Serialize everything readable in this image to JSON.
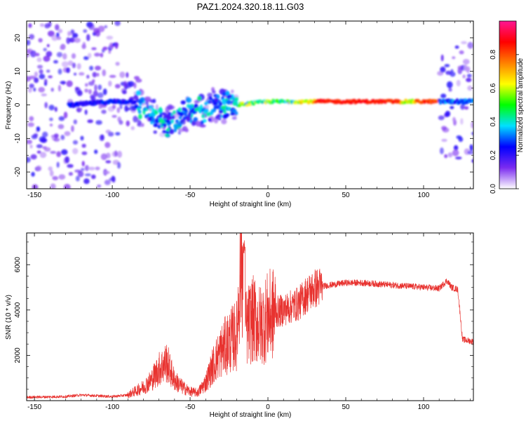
{
  "title": "PAZ1.2024.320.18.11.G03",
  "colors": {
    "snr_line": "#e8322f",
    "frame": "#000000"
  },
  "chart_data": [
    {
      "type": "heatmap",
      "xlabel": "Height of straight line (km)",
      "ylabel": "Frequency (Hz)",
      "xlim": [
        -155,
        132
      ],
      "ylim": [
        -25,
        25
      ],
      "xticks": [
        -150,
        -100,
        -50,
        0,
        50,
        100
      ],
      "yticks": [
        -20,
        -10,
        0,
        10,
        20
      ],
      "colorbar": {
        "label": "Normalized spectral amplitude",
        "range": [
          0,
          1
        ],
        "ticks": [
          0.0,
          0.2,
          0.4,
          0.6,
          0.8
        ],
        "colormap": "rainbow",
        "colors": [
          "#ffffff",
          "#7b2cf0",
          "#0000ff",
          "#00e0ff",
          "#00ff00",
          "#ffff00",
          "#ff8000",
          "#ff0000",
          "#ff1493"
        ]
      },
      "ridge": {
        "description": "dominant spectral line",
        "points": [
          [
            -125,
            0
          ],
          [
            -100,
            1
          ],
          [
            -85,
            1
          ],
          [
            -75,
            -3
          ],
          [
            -65,
            -6
          ],
          [
            -55,
            -3
          ],
          [
            -45,
            -2
          ],
          [
            -35,
            0
          ],
          [
            -20,
            0
          ],
          [
            0,
            1
          ],
          [
            30,
            1
          ],
          [
            60,
            1
          ],
          [
            90,
            1
          ],
          [
            110,
            1
          ],
          [
            125,
            1
          ],
          [
            132,
            1
          ]
        ]
      }
    },
    {
      "type": "line",
      "xlabel": "Height of straight line (km)",
      "ylabel": "SNR (10 * v/v)",
      "xlim": [
        -155,
        132
      ],
      "ylim": [
        0,
        7400
      ],
      "xticks": [
        -150,
        -100,
        -50,
        0,
        50,
        100
      ],
      "yticks": [
        2000,
        4000,
        6000
      ],
      "series": [
        {
          "x": [
            -155,
            -130,
            -120,
            -100,
            -90,
            -80,
            -75,
            -70,
            -65,
            -60,
            -55,
            -50,
            -45,
            -40,
            -35,
            -30,
            -25,
            -20,
            -17,
            -15,
            -12,
            -10,
            -5,
            0,
            5,
            10,
            20,
            25,
            30,
            35,
            40,
            50,
            60,
            70,
            80,
            90,
            100,
            110,
            115,
            118,
            122,
            125,
            132
          ],
          "y": [
            150,
            180,
            250,
            180,
            250,
            600,
            900,
            1400,
            1700,
            900,
            600,
            400,
            350,
            800,
            1600,
            2200,
            2600,
            2900,
            6800,
            3100,
            3400,
            3600,
            3300,
            3700,
            3900,
            4000,
            4300,
            4700,
            4950,
            5050,
            5100,
            5200,
            5200,
            5150,
            5100,
            5050,
            5000,
            4950,
            5300,
            5000,
            4900,
            2700,
            2600
          ]
        }
      ]
    }
  ]
}
